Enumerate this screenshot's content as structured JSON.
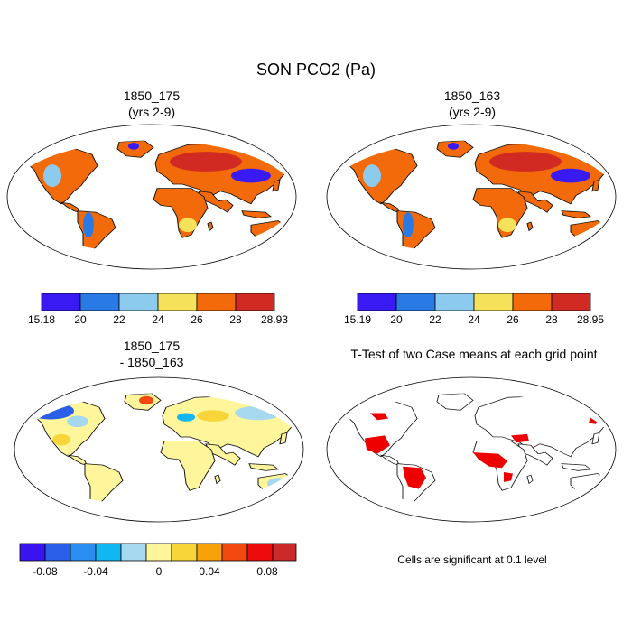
{
  "figure_title": "SON PCO2 (Pa)",
  "chart_data": [
    {
      "type": "map",
      "panel": "top-left",
      "title_line1": "1850_175",
      "title_line2": "(yrs 2-9)",
      "colorbar": {
        "colors": [
          "#3a1af2",
          "#2a7ae6",
          "#8ccbee",
          "#f5e25a",
          "#f26a0a",
          "#d02a22"
        ],
        "labels": [
          "15.18",
          "20",
          "22",
          "24",
          "26",
          "28",
          "28.93"
        ]
      }
    },
    {
      "type": "map",
      "panel": "top-right",
      "title_line1": "1850_163",
      "title_line2": "(yrs 2-9)",
      "colorbar": {
        "colors": [
          "#3a1af2",
          "#2a7ae6",
          "#8ccbee",
          "#f5e25a",
          "#f26a0a",
          "#d02a22"
        ],
        "labels": [
          "15.19",
          "20",
          "22",
          "24",
          "26",
          "28",
          "28.95"
        ]
      }
    },
    {
      "type": "map",
      "panel": "bottom-left",
      "title_line1": "1850_175",
      "title_line2": "- 1850_163",
      "colorbar": {
        "colors": [
          "#3a14f0",
          "#2a60e8",
          "#2a8ef0",
          "#12b6f2",
          "#a6d8f0",
          "#fff59a",
          "#f8d63a",
          "#f7a20a",
          "#f24a0e",
          "#ee0b0b",
          "#cc2a2a"
        ],
        "labels": [
          "-0.08",
          "-0.04",
          "0",
          "0.04",
          "0.08"
        ],
        "label_positions": [
          1,
          3,
          5,
          7,
          9
        ]
      }
    },
    {
      "type": "map",
      "panel": "bottom-right",
      "title_line1": "T-Test of two Case means at each grid point",
      "note": "Cells are significant at 0.1 level",
      "significant_color": "#ee0000"
    }
  ]
}
